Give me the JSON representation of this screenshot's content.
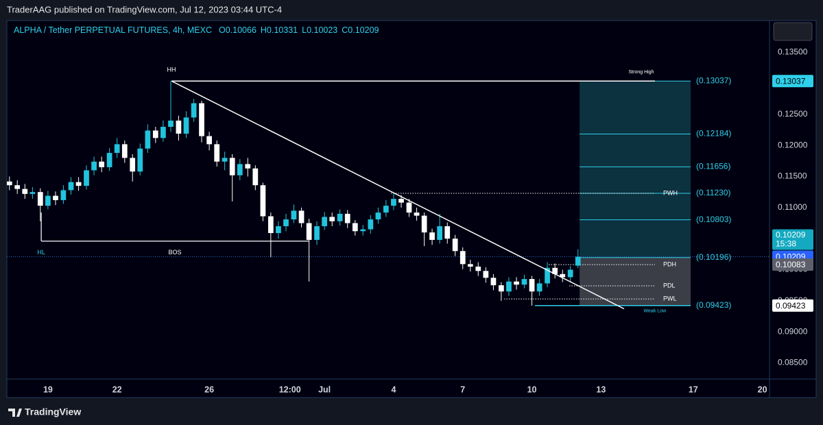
{
  "header": {
    "published": "TraderAAG published on TradingView.com, Jul 12, 2023 03:44 UTC-4",
    "symbol": "ALPHA / Tether PERPETUAL FUTURES, 4h, MEXC",
    "ohlc": [
      "O0.10066",
      "H0.10331",
      "L0.10023",
      "C0.10209"
    ]
  },
  "chart_data": {
    "type": "candlestick",
    "up_color": "#22c3dd",
    "down_color": "#ffffff",
    "x": [
      17.33,
      17.67,
      18,
      18.33,
      18.67,
      19,
      19.33,
      19.67,
      20,
      20.33,
      20.67,
      21,
      21.33,
      21.67,
      22,
      22.33,
      22.67,
      23,
      23.33,
      23.67,
      24,
      24.33,
      24.67,
      25,
      25.33,
      25.67,
      26,
      26.33,
      26.67,
      27,
      27.33,
      27.67,
      28,
      28.33,
      28.67,
      29,
      29.33,
      29.67,
      30,
      30.33,
      30.67,
      31,
      31.33,
      31.67,
      32,
      32.33,
      32.67,
      33,
      33.33,
      33.67,
      34,
      34.33,
      34.67,
      35,
      35.33,
      35.67,
      36,
      36.33,
      36.67,
      37,
      37.33,
      37.67,
      38,
      38.33,
      38.67,
      39,
      39.33,
      39.67,
      40,
      40.33,
      40.67,
      41,
      41.33,
      41.67,
      42
    ],
    "open": [
      0.1142,
      0.1136,
      0.113,
      0.1122,
      0.1125,
      0.1103,
      0.1119,
      0.1112,
      0.1128,
      0.1141,
      0.1135,
      0.116,
      0.1174,
      0.1165,
      0.1188,
      0.1202,
      0.118,
      0.1158,
      0.1195,
      0.1224,
      0.1212,
      0.123,
      0.124,
      0.1219,
      0.1245,
      0.1268,
      0.1215,
      0.1202,
      0.1174,
      0.118,
      0.1152,
      0.117,
      0.1163,
      0.1136,
      0.1086,
      0.1059,
      0.107,
      0.1081,
      0.1095,
      0.1075,
      0.1048,
      0.107,
      0.1085,
      0.1078,
      0.109,
      0.1075,
      0.1062,
      0.1065,
      0.1081,
      0.1092,
      0.1103,
      0.1114,
      0.1108,
      0.1092,
      0.1087,
      0.106,
      0.1048,
      0.107,
      0.105,
      0.103,
      0.1009,
      0.1005,
      0.0998,
      0.0987,
      0.0975,
      0.0965,
      0.0981,
      0.0976,
      0.0985,
      0.0965,
      0.0978,
      0.1003,
      0.0993,
      0.0988,
      0.10066
    ],
    "high": [
      0.115,
      0.1144,
      0.1138,
      0.1133,
      0.1131,
      0.1127,
      0.1126,
      0.1136,
      0.1149,
      0.1149,
      0.1168,
      0.1182,
      0.1182,
      0.1196,
      0.1212,
      0.1208,
      0.1186,
      0.1203,
      0.1234,
      0.123,
      0.124,
      0.13037,
      0.1248,
      0.1255,
      0.1275,
      0.1272,
      0.1222,
      0.1208,
      0.119,
      0.1186,
      0.1178,
      0.118,
      0.1168,
      0.114,
      0.1092,
      0.1078,
      0.109,
      0.1105,
      0.11,
      0.1082,
      0.1078,
      0.1093,
      0.1092,
      0.1097,
      0.1096,
      0.108,
      0.1072,
      0.1088,
      0.11,
      0.1112,
      0.1123,
      0.112,
      0.1114,
      0.11,
      0.1092,
      0.1066,
      0.109,
      0.1076,
      0.1056,
      0.1036,
      0.1016,
      0.1012,
      0.1004,
      0.0993,
      0.098,
      0.0988,
      0.0988,
      0.0992,
      0.099,
      0.0985,
      0.1012,
      0.101,
      0.1,
      0.1006,
      0.10331
    ],
    "low": [
      0.1128,
      0.1122,
      0.1114,
      0.1114,
      0.1078,
      0.1097,
      0.1104,
      0.1106,
      0.1121,
      0.1127,
      0.1129,
      0.1152,
      0.1157,
      0.1159,
      0.118,
      0.1172,
      0.1142,
      0.1152,
      0.1188,
      0.1204,
      0.1206,
      0.1222,
      0.1208,
      0.1212,
      0.1238,
      0.1205,
      0.1192,
      0.1166,
      0.116,
      0.111,
      0.1144,
      0.115,
      0.1128,
      0.1078,
      0.102,
      0.105,
      0.1062,
      0.1075,
      0.1068,
      0.0981,
      0.104,
      0.1064,
      0.107,
      0.1071,
      0.1067,
      0.1055,
      0.1055,
      0.1058,
      0.1074,
      0.1085,
      0.1096,
      0.11,
      0.1085,
      0.1079,
      0.1038,
      0.104,
      0.1042,
      0.1042,
      0.1022,
      0.1001,
      0.0997,
      0.099,
      0.0979,
      0.0967,
      0.095,
      0.0958,
      0.0968,
      0.097,
      0.09423,
      0.0958,
      0.0972,
      0.0986,
      0.098,
      0.0981,
      0.10023
    ],
    "close": [
      0.1136,
      0.113,
      0.1122,
      0.1125,
      0.1103,
      0.1119,
      0.1112,
      0.1128,
      0.1141,
      0.1135,
      0.116,
      0.1174,
      0.1165,
      0.1188,
      0.1202,
      0.118,
      0.1158,
      0.1195,
      0.1224,
      0.1212,
      0.123,
      0.124,
      0.1219,
      0.1245,
      0.1268,
      0.1215,
      0.1202,
      0.1174,
      0.118,
      0.1152,
      0.117,
      0.1163,
      0.1136,
      0.1086,
      0.1059,
      0.107,
      0.1081,
      0.1095,
      0.1075,
      0.1048,
      0.107,
      0.1085,
      0.1078,
      0.109,
      0.1075,
      0.1062,
      0.1065,
      0.1081,
      0.1092,
      0.1103,
      0.1114,
      0.1108,
      0.1092,
      0.1087,
      0.106,
      0.1048,
      0.107,
      0.105,
      0.103,
      0.1009,
      0.1005,
      0.0998,
      0.0987,
      0.0975,
      0.0965,
      0.0981,
      0.0976,
      0.0985,
      0.0965,
      0.0978,
      0.1003,
      0.0993,
      0.0988,
      0.1,
      0.10209
    ],
    "xlim": [
      16.92,
      50.31
    ],
    "xticks": [
      19,
      22,
      26,
      {
        "value": 29.5,
        "label": "12:00"
      },
      {
        "value": 31,
        "label": "Jul"
      },
      {
        "value": 34,
        "label": "4"
      },
      {
        "value": 37,
        "label": "7"
      },
      {
        "value": 40,
        "label": "10"
      },
      {
        "value": 43,
        "label": "13"
      },
      {
        "value": 47,
        "label": "17"
      },
      {
        "value": 50,
        "label": "20"
      }
    ],
    "ylim": [
      0.0824,
      0.1401
    ],
    "yticks": [
      {
        "value": 0.085,
        "label": "0.08500"
      },
      {
        "value": 0.09,
        "label": "0.09000"
      },
      {
        "value": 0.095,
        "label": "0.09500"
      },
      {
        "value": 0.1,
        "label": "0.10000"
      },
      {
        "value": 0.105,
        "label": "0.10500"
      },
      {
        "value": 0.11,
        "label": "0.11000"
      },
      {
        "value": 0.115,
        "label": "0.11500"
      },
      {
        "value": 0.12,
        "label": "0.12000"
      },
      {
        "value": 0.125,
        "label": "0.12500"
      },
      {
        "value": 0.13,
        "label": "0.13000"
      },
      {
        "value": 0.135,
        "label": "0.13500"
      }
    ],
    "trendline": {
      "label": "HH",
      "from": [
        24.36,
        0.13037
      ],
      "to": [
        44.0,
        0.09371
      ]
    },
    "bos": {
      "label": "BOS",
      "hl_label": "HL",
      "price": 0.1046,
      "anchor": 0.1092,
      "from": 18.71,
      "to": 30.31
    },
    "fib_box": {
      "from": 42.07,
      "to": 46.89,
      "split": 0.10196,
      "levels": [
        {
          "value": 0.13037,
          "label": "(0.13037)"
        },
        {
          "value": 0.12184,
          "label": "(0.12184)"
        },
        {
          "value": 0.11656,
          "label": "(0.11656)"
        },
        {
          "value": 0.1123,
          "label": "(0.11230)"
        },
        {
          "value": 0.10803,
          "label": "(0.10803)"
        },
        {
          "value": 0.10196,
          "label": "(0.10196)"
        },
        {
          "value": 0.09423,
          "label": "(0.09423)"
        }
      ]
    },
    "swing_lines": [
      {
        "label": "Strong High",
        "price": 0.13037,
        "from": 24.36,
        "to": 45.34,
        "style": "solid",
        "color": "#ffffff",
        "label_pos": "above"
      },
      {
        "label": "PWH",
        "price": 0.1123,
        "from": 33.88,
        "to": 45.34,
        "style": "dotted",
        "color": "#ffffff",
        "label_pos": "right"
      },
      {
        "label": "PDH",
        "price": 0.10083,
        "from": 40.73,
        "to": 45.34,
        "style": "dotted",
        "color": "#ffffff",
        "label_pos": "right"
      },
      {
        "label": "PDL",
        "price": 0.0974,
        "from": 41.62,
        "to": 45.34,
        "style": "dotted",
        "color": "#ffffff",
        "label_pos": "right"
      },
      {
        "label": "PWL",
        "price": 0.0953,
        "from": 38.79,
        "to": 45.34,
        "style": "dotted",
        "color": "#ffffff",
        "label_pos": "right"
      },
      {
        "label": "Weak Low",
        "price": 0.09423,
        "from": 40.13,
        "to": 46.89,
        "style": "solid",
        "color": "#2fd0ea",
        "label_pos": "below"
      }
    ],
    "price_tags": [
      {
        "value": 0.13037,
        "color": "#2fd0ea",
        "text_color": "#000000"
      },
      {
        "value": 0.10209,
        "countdown": "15:38",
        "color": "#14a9c0",
        "text_color": "#ffffff"
      },
      {
        "value": 0.10209,
        "color": "#2962ff",
        "text_color": "#ffffff"
      },
      {
        "value": 0.10083,
        "color": "#5d606b",
        "text_color": "#ffffff"
      },
      {
        "value": 0.09423,
        "color": "#ffffff",
        "text_color": "#000000"
      }
    ]
  },
  "footer": {
    "brand": "TradingView"
  }
}
